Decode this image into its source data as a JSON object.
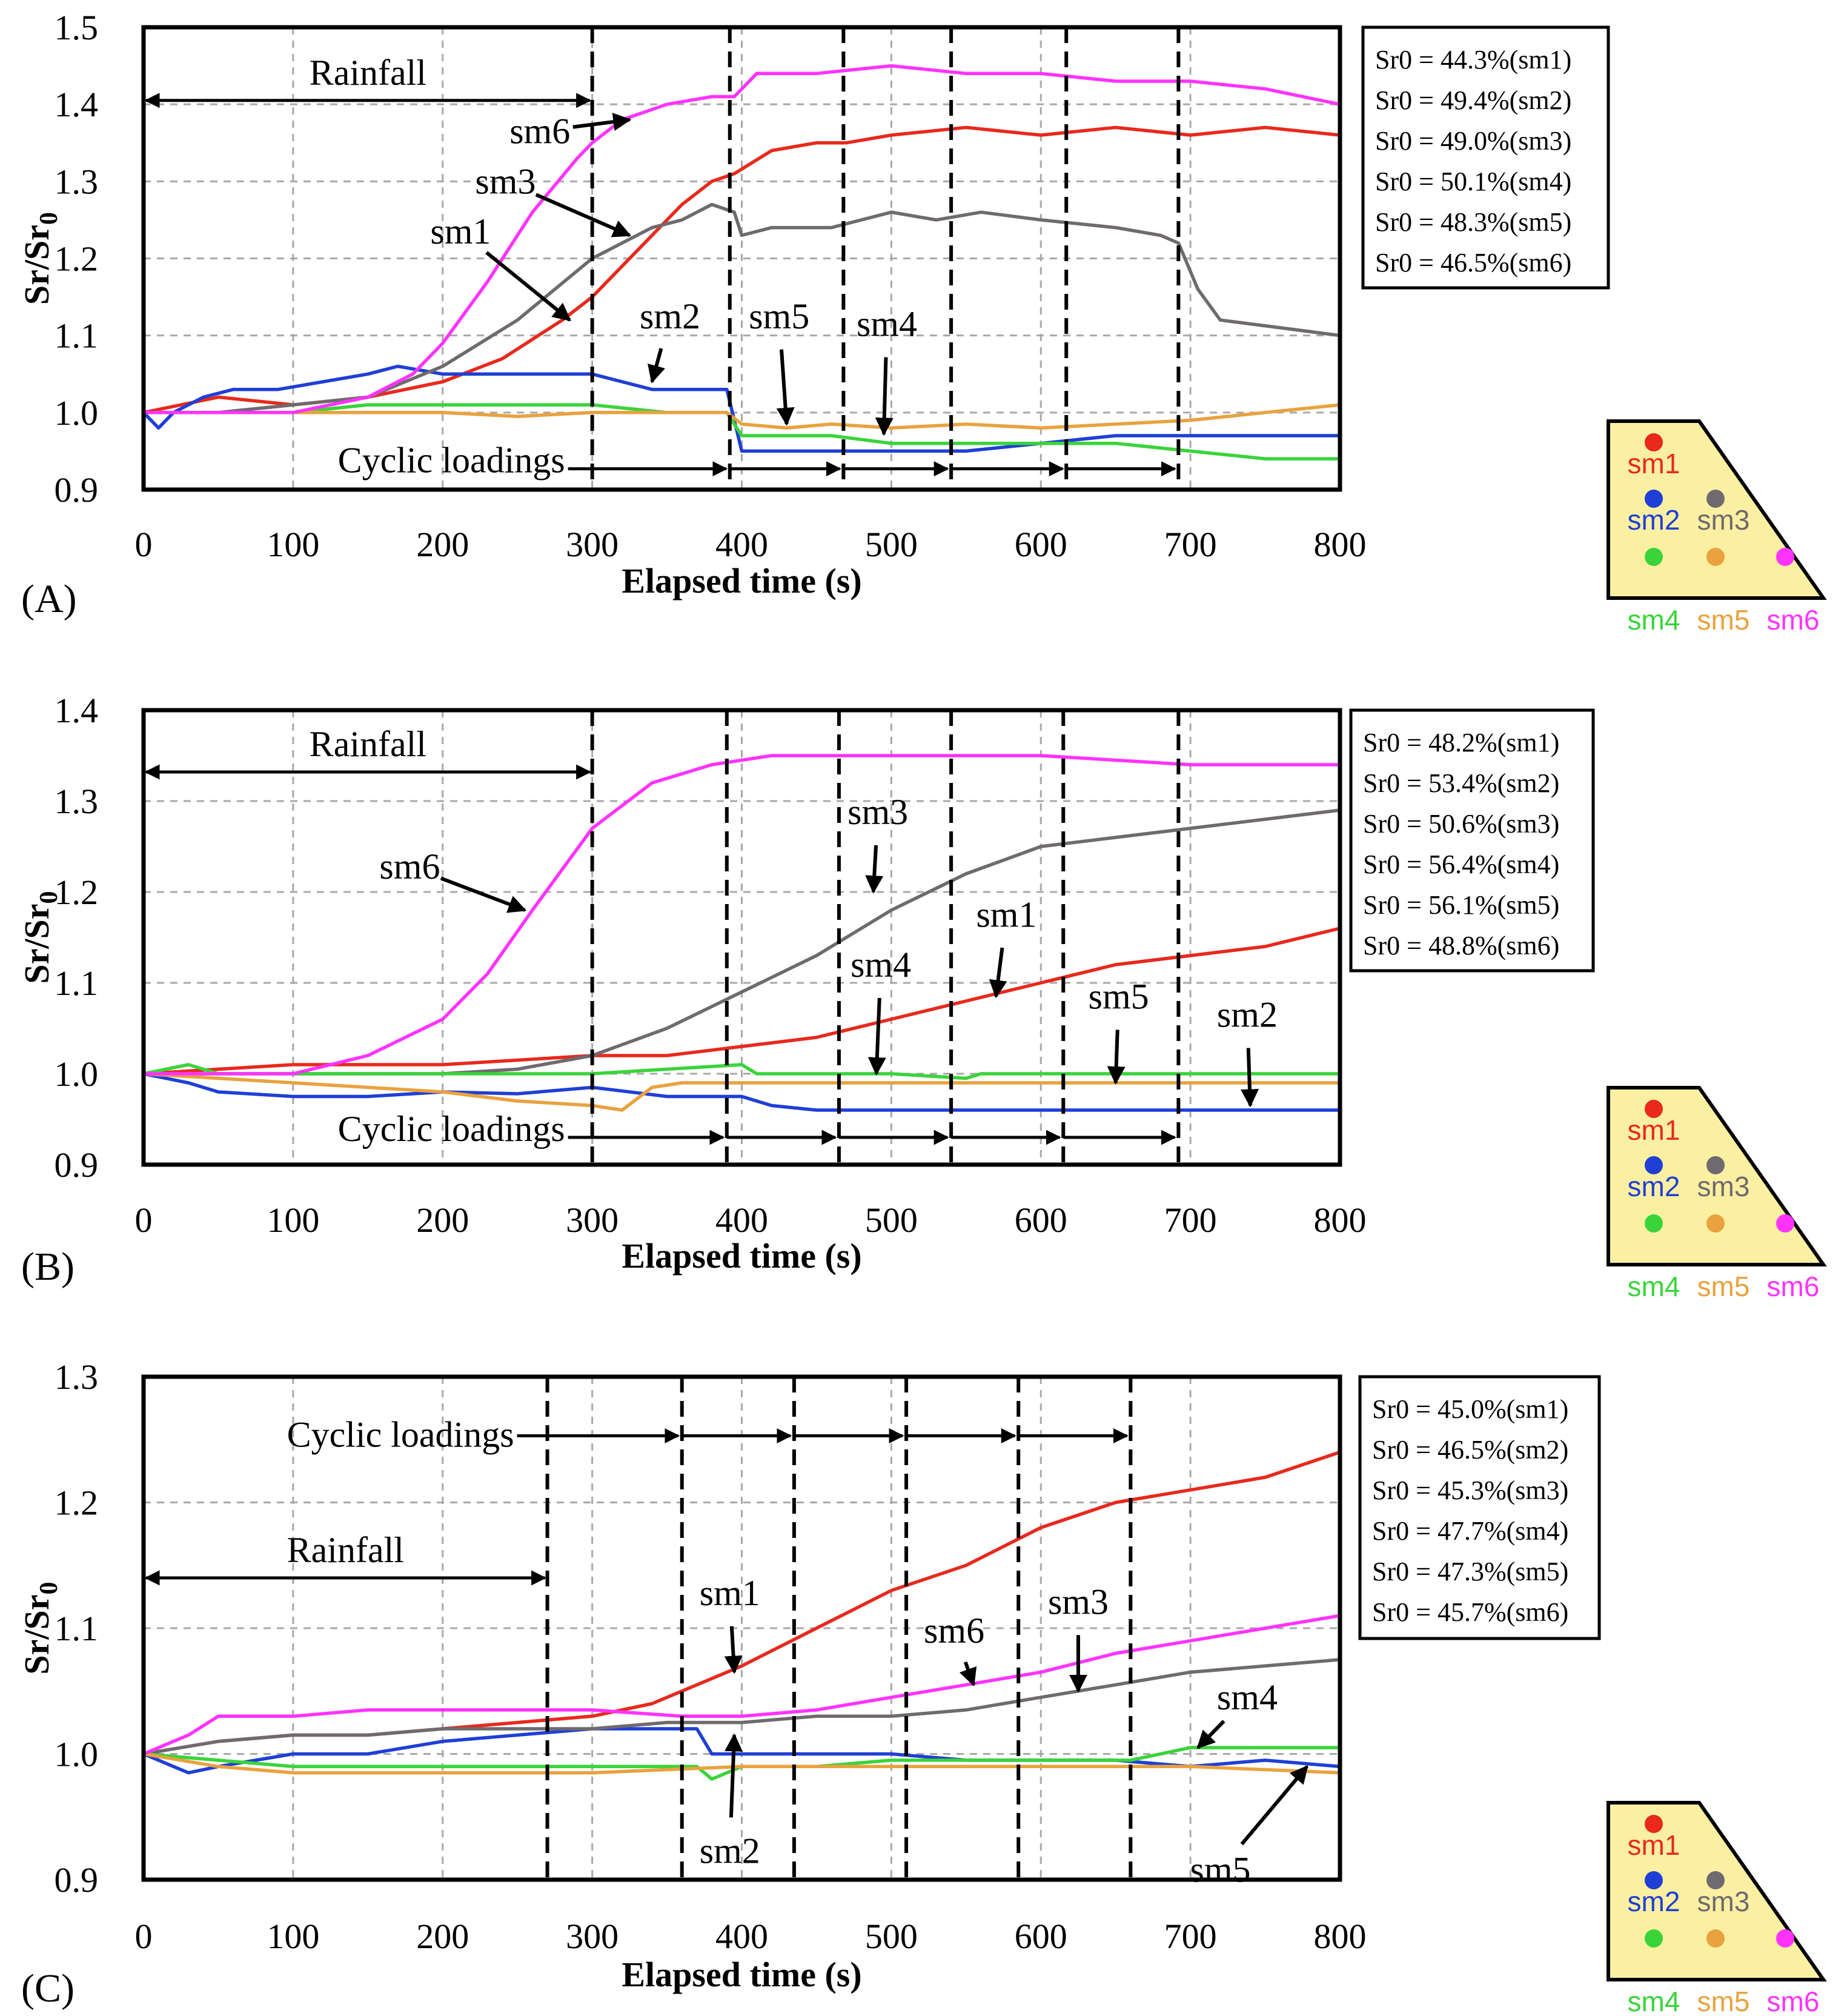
{
  "figure": {
    "colors": {
      "sm1": "#e8291c",
      "sm2": "#1f3fd6",
      "sm3": "#6f6a6e",
      "sm4": "#3ad43a",
      "sm5": "#e9a23e",
      "sm6": "#ff33ff",
      "inset_fill": "#fbf0a2"
    },
    "inset_labels": [
      "sm1",
      "sm2",
      "sm3",
      "sm4",
      "sm5",
      "sm6"
    ]
  },
  "chart_data": [
    {
      "type": "line",
      "panel_label": "(A)",
      "xlabel": "Elapsed time (s)",
      "ylabel": "Sr/Sr0",
      "xlim": [
        0,
        800
      ],
      "ylim": [
        0.9,
        1.5
      ],
      "xticks": [
        0,
        100,
        200,
        300,
        400,
        500,
        600,
        700,
        800
      ],
      "yticks": [
        0.9,
        1.0,
        1.1,
        1.2,
        1.3,
        1.4,
        1.5
      ],
      "ytick_labels": [
        "0.9",
        "1.0",
        "1.1",
        "1.2",
        "1.3",
        "1.4",
        "1.5"
      ],
      "grid": true,
      "event_lines": [
        300,
        392,
        468,
        540,
        617,
        692
      ],
      "rainfall": {
        "label": "Rainfall",
        "start": 0,
        "end": 300,
        "y": 1.405
      },
      "cyclic": {
        "label": "Cyclic loadings",
        "y": 0.927
      },
      "legend": [
        "Sr0 = 44.3%(sm1)",
        "Sr0 = 49.4%(sm2)",
        "Sr0 = 49.0%(sm3)",
        "Sr0 = 50.1%(sm4)",
        "Sr0 = 48.3%(sm5)",
        "Sr0 = 46.5%(sm6)"
      ],
      "series": [
        {
          "name": "sm1",
          "x": [
            0,
            50,
            100,
            150,
            200,
            240,
            280,
            300,
            320,
            340,
            360,
            380,
            395,
            420,
            450,
            470,
            500,
            550,
            600,
            650,
            700,
            750,
            800
          ],
          "y": [
            1.0,
            1.02,
            1.01,
            1.02,
            1.04,
            1.07,
            1.12,
            1.15,
            1.19,
            1.23,
            1.27,
            1.3,
            1.31,
            1.34,
            1.35,
            1.35,
            1.36,
            1.37,
            1.36,
            1.37,
            1.36,
            1.37,
            1.36
          ]
        },
        {
          "name": "sm2",
          "x": [
            0,
            10,
            20,
            30,
            40,
            60,
            90,
            120,
            150,
            170,
            200,
            250,
            300,
            340,
            380,
            390,
            400,
            420,
            450,
            500,
            550,
            600,
            650,
            700,
            750,
            800
          ],
          "y": [
            1.0,
            0.98,
            1.0,
            1.01,
            1.02,
            1.03,
            1.03,
            1.04,
            1.05,
            1.06,
            1.05,
            1.05,
            1.05,
            1.03,
            1.03,
            1.03,
            0.95,
            0.95,
            0.95,
            0.95,
            0.95,
            0.96,
            0.97,
            0.97,
            0.97,
            0.97
          ]
        },
        {
          "name": "sm3",
          "x": [
            0,
            50,
            100,
            150,
            200,
            250,
            300,
            340,
            360,
            380,
            395,
            400,
            420,
            460,
            500,
            530,
            560,
            600,
            650,
            680,
            692,
            705,
            720,
            760,
            800
          ],
          "y": [
            1.0,
            1.0,
            1.01,
            1.02,
            1.06,
            1.12,
            1.2,
            1.24,
            1.25,
            1.27,
            1.26,
            1.23,
            1.24,
            1.24,
            1.26,
            1.25,
            1.26,
            1.25,
            1.24,
            1.23,
            1.22,
            1.16,
            1.12,
            1.11,
            1.1
          ]
        },
        {
          "name": "sm4",
          "x": [
            0,
            50,
            100,
            150,
            200,
            250,
            300,
            350,
            390,
            400,
            430,
            460,
            500,
            550,
            600,
            650,
            700,
            750,
            800
          ],
          "y": [
            1.0,
            1.0,
            1.0,
            1.01,
            1.01,
            1.01,
            1.01,
            1.0,
            1.0,
            0.97,
            0.97,
            0.97,
            0.96,
            0.96,
            0.96,
            0.96,
            0.95,
            0.94,
            0.94
          ]
        },
        {
          "name": "sm5",
          "x": [
            0,
            50,
            100,
            150,
            200,
            250,
            300,
            350,
            390,
            400,
            430,
            460,
            500,
            550,
            600,
            650,
            700,
            750,
            800
          ],
          "y": [
            1.0,
            1.0,
            1.0,
            1.0,
            1.0,
            0.995,
            1.0,
            1.0,
            1.0,
            0.985,
            0.98,
            0.985,
            0.98,
            0.985,
            0.98,
            0.985,
            0.99,
            1.0,
            1.01
          ]
        },
        {
          "name": "sm6",
          "x": [
            0,
            50,
            100,
            150,
            180,
            200,
            230,
            260,
            290,
            300,
            320,
            350,
            380,
            395,
            410,
            450,
            500,
            550,
            600,
            650,
            700,
            750,
            800
          ],
          "y": [
            1.0,
            1.0,
            1.0,
            1.02,
            1.05,
            1.09,
            1.17,
            1.26,
            1.33,
            1.35,
            1.38,
            1.4,
            1.41,
            1.41,
            1.44,
            1.44,
            1.45,
            1.44,
            1.44,
            1.43,
            1.43,
            1.42,
            1.4
          ]
        }
      ],
      "labels": [
        {
          "text": "sm6",
          "tx": 265,
          "ty": 1.365,
          "ax": 325,
          "ay": 1.38
        },
        {
          "text": "sm3",
          "tx": 242,
          "ty": 1.3,
          "ax": 325,
          "ay": 1.23
        },
        {
          "text": "sm1",
          "tx": 212,
          "ty": 1.235,
          "ax": 285,
          "ay": 1.12
        },
        {
          "text": "sm2",
          "tx": 352,
          "ty": 1.125,
          "ax": 340,
          "ay": 1.04
        },
        {
          "text": "sm5",
          "tx": 425,
          "ty": 1.125,
          "ax": 430,
          "ay": 0.985
        },
        {
          "text": "sm4",
          "tx": 497,
          "ty": 1.115,
          "ax": 495,
          "ay": 0.972
        }
      ]
    },
    {
      "type": "line",
      "panel_label": "(B)",
      "xlabel": "Elapsed time (s)",
      "ylabel": "Sr/Sr0",
      "xlim": [
        0,
        800
      ],
      "ylim": [
        0.9,
        1.4
      ],
      "xticks": [
        0,
        100,
        200,
        300,
        400,
        500,
        600,
        700,
        800
      ],
      "yticks": [
        0.9,
        1.0,
        1.1,
        1.2,
        1.3,
        1.4
      ],
      "ytick_labels": [
        "0.9",
        "1.0",
        "1.1",
        "1.2",
        "1.3",
        "1.4"
      ],
      "grid": true,
      "event_lines": [
        300,
        390,
        465,
        540,
        615,
        692
      ],
      "rainfall": {
        "label": "Rainfall",
        "start": 0,
        "end": 300,
        "y": 1.332
      },
      "cyclic": {
        "label": "Cyclic loadings",
        "y": 0.93
      },
      "legend": [
        "Sr0 = 48.2%(sm1)",
        "Sr0 = 53.4%(sm2)",
        "Sr0 = 50.6%(sm3)",
        "Sr0 = 56.4%(sm4)",
        "Sr0 = 56.1%(sm5)",
        "Sr0 = 48.8%(sm6)"
      ],
      "series": [
        {
          "name": "sm1",
          "x": [
            0,
            100,
            200,
            300,
            350,
            400,
            450,
            500,
            550,
            600,
            650,
            700,
            750,
            800
          ],
          "y": [
            1.0,
            1.01,
            1.01,
            1.02,
            1.02,
            1.03,
            1.04,
            1.06,
            1.08,
            1.1,
            1.12,
            1.13,
            1.14,
            1.16
          ]
        },
        {
          "name": "sm2",
          "x": [
            0,
            30,
            50,
            100,
            150,
            200,
            250,
            300,
            350,
            400,
            420,
            450,
            500,
            600,
            700,
            800
          ],
          "y": [
            1.0,
            0.99,
            0.98,
            0.975,
            0.975,
            0.98,
            0.978,
            0.985,
            0.975,
            0.975,
            0.965,
            0.96,
            0.96,
            0.96,
            0.96,
            0.96
          ]
        },
        {
          "name": "sm3",
          "x": [
            0,
            100,
            200,
            250,
            300,
            350,
            400,
            450,
            500,
            550,
            600,
            650,
            700,
            750,
            800
          ],
          "y": [
            1.0,
            1.0,
            1.0,
            1.005,
            1.02,
            1.05,
            1.09,
            1.13,
            1.18,
            1.22,
            1.25,
            1.26,
            1.27,
            1.28,
            1.29
          ]
        },
        {
          "name": "sm4",
          "x": [
            0,
            30,
            50,
            100,
            200,
            300,
            400,
            410,
            450,
            500,
            550,
            560,
            600,
            700,
            800
          ],
          "y": [
            1.0,
            1.01,
            1.0,
            1.0,
            1.0,
            1.0,
            1.01,
            1.0,
            1.0,
            1.0,
            0.995,
            1.0,
            1.0,
            1.0,
            1.0
          ]
        },
        {
          "name": "sm5",
          "x": [
            0,
            50,
            100,
            150,
            200,
            250,
            300,
            320,
            340,
            360,
            400,
            500,
            600,
            700,
            800
          ],
          "y": [
            1.0,
            0.995,
            0.99,
            0.985,
            0.98,
            0.97,
            0.965,
            0.96,
            0.985,
            0.99,
            0.99,
            0.99,
            0.99,
            0.99,
            0.99
          ]
        },
        {
          "name": "sm6",
          "x": [
            0,
            50,
            100,
            150,
            200,
            230,
            260,
            300,
            340,
            380,
            420,
            460,
            500,
            600,
            700,
            800
          ],
          "y": [
            1.0,
            1.0,
            1.0,
            1.02,
            1.06,
            1.11,
            1.18,
            1.27,
            1.32,
            1.34,
            1.35,
            1.35,
            1.35,
            1.35,
            1.34,
            1.34
          ]
        }
      ],
      "labels": [
        {
          "text": "sm6",
          "tx": 178,
          "ty": 1.228,
          "ax": 255,
          "ay": 1.18
        },
        {
          "text": "sm3",
          "tx": 491,
          "ty": 1.288,
          "ax": 488,
          "ay": 1.2
        },
        {
          "text": "sm1",
          "tx": 577,
          "ty": 1.175,
          "ax": 570,
          "ay": 1.085
        },
        {
          "text": "sm4",
          "tx": 493,
          "ty": 1.12,
          "ax": 490,
          "ay": 1.0
        },
        {
          "text": "sm5",
          "tx": 652,
          "ty": 1.085,
          "ax": 650,
          "ay": 0.99
        },
        {
          "text": "sm2",
          "tx": 738,
          "ty": 1.065,
          "ax": 740,
          "ay": 0.965
        }
      ]
    },
    {
      "type": "line",
      "panel_label": "(C)",
      "xlabel": "Elapsed time (s)",
      "ylabel": "Sr/Sr0",
      "xlim": [
        0,
        800
      ],
      "ylim": [
        0.9,
        1.3
      ],
      "xticks": [
        0,
        100,
        200,
        300,
        400,
        500,
        600,
        700,
        800
      ],
      "yticks": [
        0.9,
        1.0,
        1.1,
        1.2,
        1.3
      ],
      "ytick_labels": [
        "0.9",
        "1.0",
        "1.1",
        "1.2",
        "1.3"
      ],
      "grid": true,
      "event_lines": [
        270,
        360,
        435,
        510,
        585,
        660
      ],
      "rainfall": {
        "label": "Rainfall",
        "start": 0,
        "end": 270,
        "y": 1.14
      },
      "cyclic": {
        "label": "Cyclic loadings",
        "y": 1.253
      },
      "legend": [
        "Sr0 = 45.0%(sm1)",
        "Sr0 = 46.5%(sm2)",
        "Sr0 = 45.3%(sm3)",
        "Sr0 = 47.7%(sm4)",
        "Sr0 = 47.3%(sm5)",
        "Sr0 = 45.7%(sm6)"
      ],
      "series": [
        {
          "name": "sm1",
          "x": [
            0,
            50,
            100,
            150,
            200,
            250,
            300,
            340,
            360,
            400,
            450,
            500,
            550,
            600,
            650,
            700,
            750,
            800
          ],
          "y": [
            1.0,
            1.01,
            1.015,
            1.015,
            1.02,
            1.025,
            1.03,
            1.04,
            1.05,
            1.07,
            1.1,
            1.13,
            1.15,
            1.18,
            1.2,
            1.21,
            1.22,
            1.24
          ]
        },
        {
          "name": "sm2",
          "x": [
            0,
            20,
            30,
            50,
            100,
            150,
            200,
            300,
            350,
            370,
            380,
            400,
            450,
            500,
            550,
            600,
            650,
            700,
            750,
            800
          ],
          "y": [
            1.0,
            0.99,
            0.985,
            0.99,
            1.0,
            1.0,
            1.01,
            1.02,
            1.02,
            1.02,
            1.0,
            1.0,
            1.0,
            1.0,
            0.995,
            0.995,
            0.995,
            0.99,
            0.995,
            0.99
          ]
        },
        {
          "name": "sm3",
          "x": [
            0,
            50,
            100,
            150,
            200,
            250,
            300,
            350,
            400,
            450,
            500,
            550,
            600,
            650,
            700,
            750,
            800
          ],
          "y": [
            1.0,
            1.01,
            1.015,
            1.015,
            1.02,
            1.02,
            1.02,
            1.025,
            1.025,
            1.03,
            1.03,
            1.035,
            1.045,
            1.055,
            1.065,
            1.07,
            1.075
          ]
        },
        {
          "name": "sm4",
          "x": [
            0,
            50,
            100,
            150,
            200,
            300,
            370,
            380,
            400,
            450,
            500,
            600,
            660,
            700,
            750,
            800
          ],
          "y": [
            1.0,
            0.995,
            0.99,
            0.99,
            0.99,
            0.99,
            0.99,
            0.98,
            0.99,
            0.99,
            0.995,
            0.995,
            0.995,
            1.005,
            1.005,
            1.005
          ]
        },
        {
          "name": "sm5",
          "x": [
            0,
            50,
            100,
            200,
            300,
            400,
            500,
            600,
            700,
            800
          ],
          "y": [
            1.0,
            0.99,
            0.985,
            0.985,
            0.985,
            0.99,
            0.99,
            0.99,
            0.99,
            0.985
          ]
        },
        {
          "name": "sm6",
          "x": [
            0,
            30,
            50,
            100,
            150,
            200,
            250,
            300,
            360,
            400,
            450,
            500,
            550,
            600,
            650,
            700,
            750,
            800
          ],
          "y": [
            1.0,
            1.015,
            1.03,
            1.03,
            1.035,
            1.035,
            1.035,
            1.035,
            1.03,
            1.03,
            1.035,
            1.045,
            1.055,
            1.065,
            1.08,
            1.09,
            1.1,
            1.11
          ]
        }
      ],
      "labels": [
        {
          "text": "sm1",
          "tx": 392,
          "ty": 1.128,
          "ax": 395,
          "ay": 1.065
        },
        {
          "text": "sm6",
          "tx": 542,
          "ty": 1.098,
          "ax": 555,
          "ay": 1.055
        },
        {
          "text": "sm3",
          "tx": 625,
          "ty": 1.121,
          "ax": 625,
          "ay": 1.05
        },
        {
          "text": "sm4",
          "tx": 738,
          "ty": 1.045,
          "ax": 705,
          "ay": 1.005
        },
        {
          "text": "sm2",
          "tx": 392,
          "ty": 0.923,
          "ax": 395,
          "ay": 1.015
        },
        {
          "text": "sm5",
          "tx": 720,
          "ty": 0.908,
          "ax": 778,
          "ay": 0.99
        }
      ]
    }
  ]
}
